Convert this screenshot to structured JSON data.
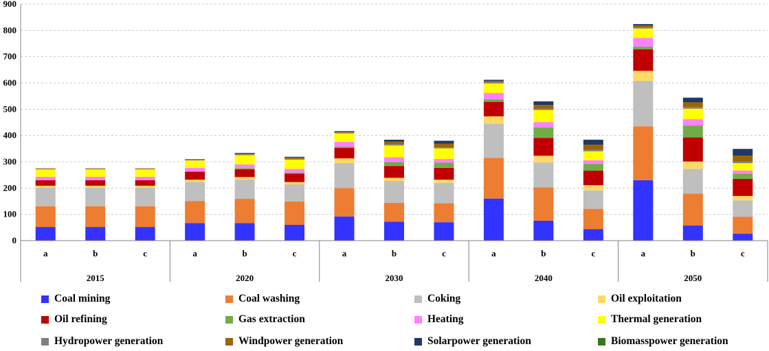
{
  "chart_data": {
    "type": "stacked-bar",
    "title": "",
    "xlabel": "",
    "ylabel": "",
    "ylim": [
      0,
      900
    ],
    "yticks": [
      0,
      100,
      200,
      300,
      400,
      500,
      600,
      700,
      800,
      900
    ],
    "grid": true,
    "legend_position": "bottom",
    "groups": [
      {
        "label": "2015",
        "scenarios": [
          "a",
          "b",
          "c"
        ]
      },
      {
        "label": "2020",
        "scenarios": [
          "a",
          "b",
          "c"
        ]
      },
      {
        "label": "2030",
        "scenarios": [
          "a",
          "b",
          "c"
        ]
      },
      {
        "label": "2040",
        "scenarios": [
          "a",
          "b",
          "c"
        ]
      },
      {
        "label": "2050",
        "scenarios": [
          "a",
          "b",
          "c"
        ]
      }
    ],
    "series": [
      {
        "name": "Coal mining",
        "color": "#3333ff",
        "values": [
          52,
          52,
          52,
          67,
          67,
          60,
          92,
          72,
          70,
          160,
          76,
          44,
          230,
          58,
          26
        ]
      },
      {
        "name": "Coal washing",
        "color": "#ed7d31",
        "values": [
          79,
          79,
          79,
          83,
          92,
          89,
          108,
          72,
          72,
          155,
          127,
          77,
          205,
          121,
          65
        ]
      },
      {
        "name": "Coking",
        "color": "#bfbfbf",
        "values": [
          70,
          70,
          70,
          73,
          73,
          65,
          95,
          83,
          78,
          130,
          95,
          70,
          173,
          94,
          62
        ]
      },
      {
        "name": "Oil exploitation",
        "color": "#ffd966",
        "values": [
          8,
          8,
          8,
          9,
          10,
          9,
          18,
          12,
          12,
          28,
          25,
          20,
          38,
          28,
          17
        ]
      },
      {
        "name": "Oil refining",
        "color": "#c00000",
        "values": [
          21,
          21,
          21,
          30,
          30,
          32,
          40,
          45,
          45,
          55,
          68,
          55,
          82,
          92,
          65
        ]
      },
      {
        "name": "Gas extraction",
        "color": "#70ad47",
        "values": [
          0,
          0,
          0,
          2,
          4,
          4,
          5,
          15,
          20,
          10,
          40,
          26,
          10,
          45,
          20
        ]
      },
      {
        "name": "Heating",
        "color": "#ff80ff",
        "values": [
          13,
          13,
          13,
          13,
          14,
          14,
          18,
          18,
          14,
          24,
          20,
          14,
          33,
          24,
          12
        ]
      },
      {
        "name": "Thermal generation",
        "color": "#ffff00",
        "values": [
          28,
          28,
          28,
          28,
          35,
          35,
          32,
          45,
          40,
          36,
          46,
          34,
          36,
          40,
          28
        ]
      },
      {
        "name": "Hydropower generation",
        "color": "#808080",
        "values": [
          2,
          2,
          2,
          2,
          3,
          3,
          3,
          5,
          5,
          4,
          5,
          5,
          4,
          6,
          6
        ]
      },
      {
        "name": "Windpower generation",
        "color": "#9c6500",
        "values": [
          2,
          2,
          2,
          2,
          4,
          5,
          4,
          10,
          13,
          6,
          14,
          20,
          8,
          18,
          22
        ]
      },
      {
        "name": "Solarpower generation",
        "color": "#203864",
        "values": [
          0,
          0,
          0,
          1,
          2,
          3,
          2,
          7,
          11,
          4,
          14,
          19,
          5,
          18,
          26
        ]
      },
      {
        "name": "Biomasspower generation",
        "color": "#38761d",
        "values": [
          0,
          0,
          0,
          0,
          0,
          0,
          0,
          0,
          0,
          0,
          0,
          0,
          0,
          0,
          0
        ]
      }
    ]
  }
}
